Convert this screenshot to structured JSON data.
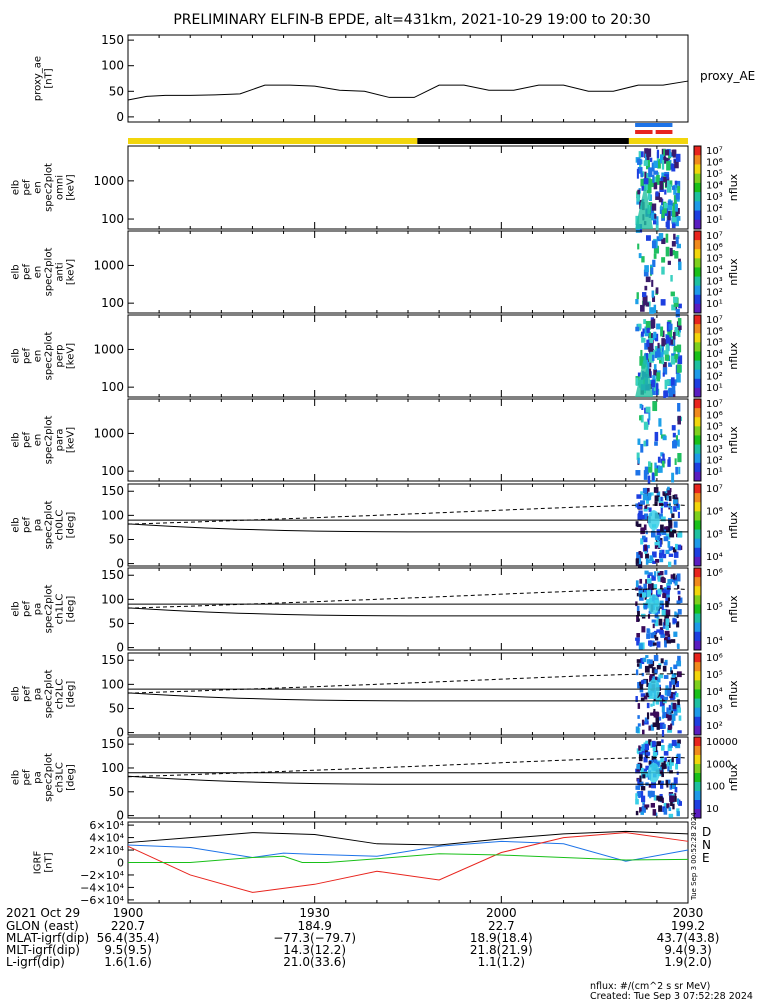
{
  "title": "PRELIMINARY ELFIN-B EPDE, alt=431km, 2021-10-29 19:00 to 20:30",
  "colors": {
    "yellow": "#f2d60c",
    "black": "#000000",
    "blue": "#1d73e8",
    "red": "#e8241d",
    "green": "#19c019"
  },
  "chart_data": [
    {
      "type": "line",
      "panel": "proxy_ae",
      "ylabel_lines": [
        "proxy_ae",
        "[nT]"
      ],
      "legend": "proxy_AE",
      "ylim": [
        -10,
        160
      ],
      "yticks": [
        "150",
        "100",
        "50",
        "0"
      ],
      "ytick_values": [
        150,
        100,
        50,
        0
      ],
      "series": [
        {
          "x": [
            0,
            3,
            6,
            10,
            14,
            18,
            22,
            26,
            30,
            34,
            38,
            42,
            46,
            50,
            54,
            58,
            62,
            66,
            70,
            74,
            78,
            82,
            86,
            90
          ],
          "values": [
            33,
            40,
            42,
            42,
            43,
            45,
            62,
            62,
            60,
            52,
            50,
            38,
            38,
            62,
            62,
            52,
            52,
            62,
            62,
            50,
            50,
            62,
            62,
            70
          ]
        }
      ]
    },
    {
      "type": "heatmap",
      "panel": "spec-omni",
      "ylabel_lines": [
        "elb",
        "pef",
        "en",
        "spec2plot",
        "omni",
        "[keV]"
      ],
      "yticks": [
        "1000",
        "100"
      ],
      "cbar_ticks": [
        "10⁷",
        "10⁶",
        "10⁵",
        "10⁴",
        "10³",
        "10²",
        "10¹"
      ],
      "cbar_label": "nflux"
    },
    {
      "type": "heatmap",
      "panel": "spec-anti",
      "ylabel_lines": [
        "elb",
        "pef",
        "en",
        "spec2plot",
        "anti",
        "[keV]"
      ],
      "yticks": [
        "1000",
        "100"
      ],
      "cbar_ticks": [
        "10⁷",
        "10⁶",
        "10⁵",
        "10⁴",
        "10³",
        "10²",
        "10¹"
      ],
      "cbar_label": "nflux"
    },
    {
      "type": "heatmap",
      "panel": "spec-perp",
      "ylabel_lines": [
        "elb",
        "pef",
        "en",
        "spec2plot",
        "perp",
        "[keV]"
      ],
      "yticks": [
        "1000",
        "100"
      ],
      "cbar_ticks": [
        "10⁷",
        "10⁶",
        "10⁵",
        "10⁴",
        "10³",
        "10²",
        "10¹"
      ],
      "cbar_label": "nflux"
    },
    {
      "type": "heatmap",
      "panel": "spec-para",
      "ylabel_lines": [
        "elb",
        "pef",
        "en",
        "spec2plot",
        "para",
        "[keV]"
      ],
      "yticks": [
        "1000",
        "100"
      ],
      "cbar_ticks": [
        "10⁷",
        "10⁶",
        "10⁵",
        "10⁴",
        "10³",
        "10²",
        "10¹"
      ],
      "cbar_label": "nflux"
    },
    {
      "type": "heatmap",
      "panel": "pa-ch0",
      "ylabel_lines": [
        "elb",
        "pef",
        "pa",
        "spec2plot",
        "ch0LC",
        "[deg]"
      ],
      "yticks": [
        "150",
        "100",
        "50",
        "0"
      ],
      "cbar_ticks": [
        "10⁷",
        "10⁶",
        "10⁵",
        "10⁴"
      ],
      "cbar_label": "nflux"
    },
    {
      "type": "heatmap",
      "panel": "pa-ch1",
      "ylabel_lines": [
        "elb",
        "pef",
        "pa",
        "spec2plot",
        "ch1LC",
        "[deg]"
      ],
      "yticks": [
        "150",
        "100",
        "50",
        "0"
      ],
      "cbar_ticks": [
        "10⁶",
        "10⁵",
        "10⁴"
      ],
      "cbar_label": "nflux"
    },
    {
      "type": "heatmap",
      "panel": "pa-ch2",
      "ylabel_lines": [
        "elb",
        "pef",
        "pa",
        "spec2plot",
        "ch2LC",
        "[deg]"
      ],
      "yticks": [
        "150",
        "100",
        "50",
        "0"
      ],
      "cbar_ticks": [
        "10⁶",
        "10⁵",
        "10⁴",
        "10³",
        "10²"
      ],
      "cbar_label": "nflux"
    },
    {
      "type": "heatmap",
      "panel": "pa-ch3",
      "ylabel_lines": [
        "elb",
        "pef",
        "pa",
        "spec2plot",
        "ch3LC",
        "[deg]"
      ],
      "yticks": [
        "150",
        "100",
        "50",
        "0"
      ],
      "cbar_ticks": [
        "10000",
        "1000",
        "100",
        "10"
      ],
      "cbar_label": "nflux"
    },
    {
      "type": "line",
      "panel": "igrf",
      "ylabel_lines": [
        "IGRF",
        "[nT]"
      ],
      "ylim": [
        -65000,
        65000
      ],
      "yticks": [
        "6×10⁴",
        "4×10⁴",
        "2×10⁴",
        "0",
        "−2×10⁴",
        "−4×10⁴",
        "−6×10⁴"
      ],
      "ytick_values": [
        60000,
        40000,
        20000,
        0,
        -20000,
        -40000,
        -60000
      ],
      "legend": [
        "D",
        "N",
        "E"
      ],
      "series": [
        {
          "name": "D",
          "color": "#000000",
          "x": [
            0,
            10,
            20,
            30,
            40,
            50,
            60,
            70,
            80,
            90
          ],
          "values": [
            32000,
            40000,
            48000,
            45000,
            30000,
            28000,
            38000,
            46000,
            50000,
            46000
          ]
        },
        {
          "name": "N",
          "color": "#1d73e8",
          "x": [
            0,
            10,
            20,
            25,
            30,
            40,
            50,
            60,
            70,
            80,
            90
          ],
          "values": [
            28000,
            24000,
            8000,
            15000,
            13000,
            10000,
            26000,
            34000,
            30000,
            2000,
            20000
          ]
        },
        {
          "name": "E",
          "color": "#e8241d",
          "x": [
            0,
            10,
            20,
            30,
            40,
            50,
            60,
            70,
            80,
            90
          ],
          "values": [
            26000,
            -20000,
            -48000,
            -35000,
            -14000,
            -28000,
            16000,
            40000,
            48000,
            34000
          ]
        },
        {
          "name": "G",
          "color": "#19c019",
          "x": [
            0,
            10,
            20,
            25,
            28,
            32,
            40,
            50,
            60,
            70,
            80,
            90
          ],
          "values": [
            0,
            0,
            8000,
            10000,
            0,
            0,
            6000,
            14000,
            12000,
            8000,
            4000,
            5000
          ]
        }
      ]
    }
  ],
  "xaxis": {
    "date_label": "2021 Oct 29",
    "ticks": [
      "1900",
      "1930",
      "2000",
      "2030"
    ],
    "tick_minutes": [
      0,
      30,
      60,
      90
    ]
  },
  "ephemeris": [
    {
      "label": "GLON (east)",
      "values": [
        "220.7",
        "184.9",
        "22.7",
        "199.2"
      ]
    },
    {
      "label": "MLAT-igrf(dip)",
      "values": [
        "56.4(35.4)",
        "−77.3(−79.7)",
        "18.9(18.4)",
        "43.7(43.8)"
      ]
    },
    {
      "label": "MLT-igrf(dip)",
      "values": [
        "9.5(9.5)",
        "14.3(12.2)",
        "21.8(21.9)",
        "9.4(9.3)"
      ]
    },
    {
      "label": "L-igrf(dip)",
      "values": [
        "1.6(1.6)",
        "21.0(33.6)",
        "1.1(1.2)",
        "1.9(2.0)"
      ]
    }
  ],
  "footer": {
    "units": "nflux: #/(cm^2 s sr MeV)",
    "created": "Created: Tue Sep  3 07:52:28 2024",
    "side_stamp": "Tue Sep  3 00:52:28 2024"
  }
}
